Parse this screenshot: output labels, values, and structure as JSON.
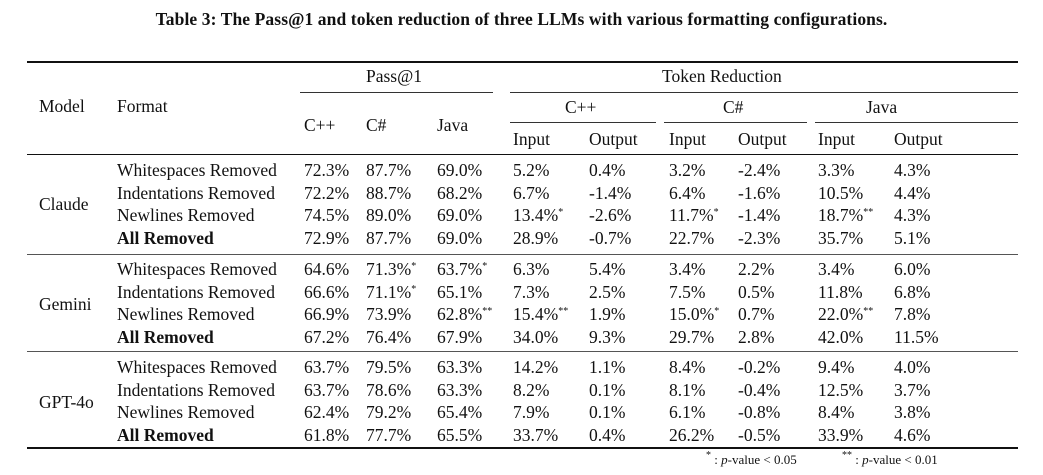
{
  "caption": "Table 3: The Pass@1 and token reduction of three LLMs with various formatting configurations.",
  "headers": {
    "model": "Model",
    "format": "Format",
    "pass1": "Pass@1",
    "token_reduction": "Token Reduction",
    "langs": [
      "C++",
      "C#",
      "Java"
    ],
    "input": "Input",
    "output": "Output"
  },
  "groups": [
    {
      "model": "Claude",
      "rows": [
        {
          "format": "Whitespaces Removed",
          "bold": false,
          "cells": [
            {
              "v": "72.3%"
            },
            {
              "v": "87.7%"
            },
            {
              "v": "69.0%"
            },
            {
              "v": "5.2%"
            },
            {
              "v": "0.4%"
            },
            {
              "v": "3.2%"
            },
            {
              "v": "-2.4%"
            },
            {
              "v": "3.3%"
            },
            {
              "v": "4.3%"
            }
          ]
        },
        {
          "format": "Indentations Removed",
          "bold": false,
          "cells": [
            {
              "v": "72.2%"
            },
            {
              "v": "88.7%"
            },
            {
              "v": "68.2%"
            },
            {
              "v": "6.7%"
            },
            {
              "v": "-1.4%"
            },
            {
              "v": "6.4%"
            },
            {
              "v": "-1.6%"
            },
            {
              "v": "10.5%"
            },
            {
              "v": "4.4%"
            }
          ]
        },
        {
          "format": "Newlines Removed",
          "bold": false,
          "cells": [
            {
              "v": "74.5%"
            },
            {
              "v": "89.0%"
            },
            {
              "v": "69.0%"
            },
            {
              "v": "13.4%",
              "s": "*"
            },
            {
              "v": "-2.6%"
            },
            {
              "v": "11.7%",
              "s": "*"
            },
            {
              "v": "-1.4%"
            },
            {
              "v": "18.7%",
              "s": "**"
            },
            {
              "v": "4.3%"
            }
          ]
        },
        {
          "format": "All Removed",
          "bold": true,
          "cells": [
            {
              "v": "72.9%"
            },
            {
              "v": "87.7%"
            },
            {
              "v": "69.0%"
            },
            {
              "v": "28.9%"
            },
            {
              "v": "-0.7%"
            },
            {
              "v": "22.7%"
            },
            {
              "v": "-2.3%"
            },
            {
              "v": "35.7%"
            },
            {
              "v": "5.1%"
            }
          ]
        }
      ]
    },
    {
      "model": "Gemini",
      "rows": [
        {
          "format": "Whitespaces Removed",
          "bold": false,
          "cells": [
            {
              "v": "64.6%"
            },
            {
              "v": "71.3%",
              "s": "*"
            },
            {
              "v": "63.7%",
              "s": "*"
            },
            {
              "v": "6.3%"
            },
            {
              "v": "5.4%"
            },
            {
              "v": "3.4%"
            },
            {
              "v": "2.2%"
            },
            {
              "v": "3.4%"
            },
            {
              "v": "6.0%"
            }
          ]
        },
        {
          "format": "Indentations Removed",
          "bold": false,
          "cells": [
            {
              "v": "66.6%"
            },
            {
              "v": "71.1%",
              "s": "*"
            },
            {
              "v": "65.1%"
            },
            {
              "v": "7.3%"
            },
            {
              "v": "2.5%"
            },
            {
              "v": "7.5%"
            },
            {
              "v": "0.5%"
            },
            {
              "v": "11.8%"
            },
            {
              "v": "6.8%"
            }
          ]
        },
        {
          "format": "Newlines Removed",
          "bold": false,
          "cells": [
            {
              "v": "66.9%"
            },
            {
              "v": "73.9%"
            },
            {
              "v": "62.8%",
              "s": "**"
            },
            {
              "v": "15.4%",
              "s": "**"
            },
            {
              "v": "1.9%"
            },
            {
              "v": "15.0%",
              "s": "*"
            },
            {
              "v": "0.7%"
            },
            {
              "v": "22.0%",
              "s": "**"
            },
            {
              "v": "7.8%"
            }
          ]
        },
        {
          "format": "All Removed",
          "bold": true,
          "cells": [
            {
              "v": "67.2%"
            },
            {
              "v": "76.4%"
            },
            {
              "v": "67.9%"
            },
            {
              "v": "34.0%"
            },
            {
              "v": "9.3%"
            },
            {
              "v": "29.7%"
            },
            {
              "v": "2.8%"
            },
            {
              "v": "42.0%"
            },
            {
              "v": "11.5%"
            }
          ]
        }
      ]
    },
    {
      "model": "GPT-4o",
      "rows": [
        {
          "format": "Whitespaces Removed",
          "bold": false,
          "cells": [
            {
              "v": "63.7%"
            },
            {
              "v": "79.5%"
            },
            {
              "v": "63.3%"
            },
            {
              "v": "14.2%"
            },
            {
              "v": "1.1%"
            },
            {
              "v": "8.4%"
            },
            {
              "v": "-0.2%"
            },
            {
              "v": "9.4%"
            },
            {
              "v": "4.0%"
            }
          ]
        },
        {
          "format": "Indentations Removed",
          "bold": false,
          "cells": [
            {
              "v": "63.7%"
            },
            {
              "v": "78.6%"
            },
            {
              "v": "63.3%"
            },
            {
              "v": "8.2%"
            },
            {
              "v": "0.1%"
            },
            {
              "v": "8.1%"
            },
            {
              "v": "-0.4%"
            },
            {
              "v": "12.5%"
            },
            {
              "v": "3.7%"
            }
          ]
        },
        {
          "format": "Newlines Removed",
          "bold": false,
          "cells": [
            {
              "v": "62.4%"
            },
            {
              "v": "79.2%"
            },
            {
              "v": "65.4%"
            },
            {
              "v": "7.9%"
            },
            {
              "v": "0.1%"
            },
            {
              "v": "6.1%"
            },
            {
              "v": "-0.8%"
            },
            {
              "v": "8.4%"
            },
            {
              "v": "3.8%"
            }
          ]
        },
        {
          "format": "All Removed",
          "bold": true,
          "cells": [
            {
              "v": "61.8%"
            },
            {
              "v": "77.7%"
            },
            {
              "v": "65.5%"
            },
            {
              "v": "33.7%"
            },
            {
              "v": "0.4%"
            },
            {
              "v": "26.2%"
            },
            {
              "v": "-0.5%"
            },
            {
              "v": "33.9%"
            },
            {
              "v": "4.6%"
            }
          ]
        }
      ]
    }
  ],
  "footnotes": {
    "single_mark": "*",
    "single_sep": " : ",
    "single_label": "p",
    "single_text": "-value < 0.05",
    "double_mark": "**",
    "double_sep": " : ",
    "double_label": "p",
    "double_text": "-value < 0.01"
  }
}
